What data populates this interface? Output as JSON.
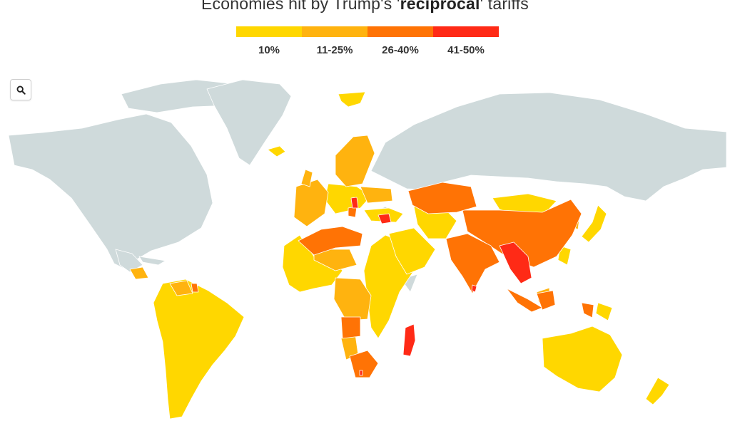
{
  "title": {
    "before": "Economies hit by Trump's '",
    "bold": "reciprocal",
    "after": "' tariffs"
  },
  "legend": [
    {
      "label": "10%",
      "color": "#ffd700"
    },
    {
      "label": "11-25%",
      "color": "#ffb30f"
    },
    {
      "label": "26-40%",
      "color": "#ff7305"
    },
    {
      "label": "41-50%",
      "color": "#ff2a16"
    }
  ],
  "map": {
    "no_tariff_color": "#cfdadb"
  },
  "controls": {
    "search_icon": "magnifier-icon"
  }
}
